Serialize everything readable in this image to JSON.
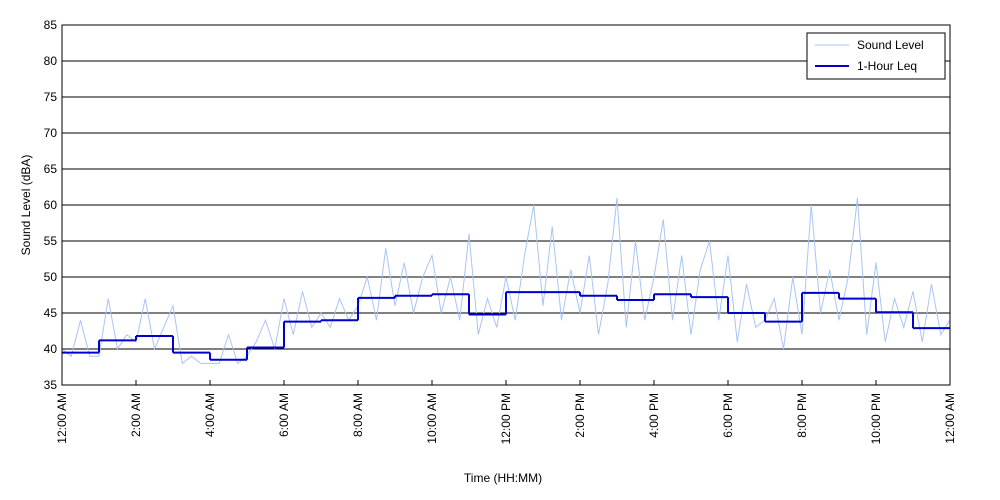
{
  "chart_data": {
    "type": "line",
    "xlabel": "Time (HH:MM)",
    "ylabel": "Sound Level (dBA)",
    "xlim": [
      0,
      24
    ],
    "ylim": [
      35,
      85
    ],
    "xticks": [
      {
        "value": 0,
        "label": "12:00 AM"
      },
      {
        "value": 2,
        "label": "2:00 AM"
      },
      {
        "value": 4,
        "label": "4:00 AM"
      },
      {
        "value": 6,
        "label": "6:00 AM"
      },
      {
        "value": 8,
        "label": "8:00 AM"
      },
      {
        "value": 10,
        "label": "10:00 AM"
      },
      {
        "value": 12,
        "label": "12:00 PM"
      },
      {
        "value": 14,
        "label": "2:00 PM"
      },
      {
        "value": 16,
        "label": "4:00 PM"
      },
      {
        "value": 18,
        "label": "6:00 PM"
      },
      {
        "value": 20,
        "label": "8:00 PM"
      },
      {
        "value": 22,
        "label": "10:00 PM"
      },
      {
        "value": 24,
        "label": "12:00 AM"
      }
    ],
    "yticks": [
      35,
      40,
      45,
      50,
      55,
      60,
      65,
      70,
      75,
      80,
      85
    ],
    "grid": true,
    "legend": "upper right",
    "series": [
      {
        "name": "Sound Level",
        "color": "#a9c4f5",
        "style": "line",
        "x": [
          0,
          0.25,
          0.5,
          0.75,
          1,
          1.25,
          1.5,
          1.75,
          2,
          2.25,
          2.5,
          2.75,
          3,
          3.25,
          3.5,
          3.75,
          4,
          4.25,
          4.5,
          4.75,
          5,
          5.25,
          5.5,
          5.75,
          6,
          6.25,
          6.5,
          6.75,
          7,
          7.25,
          7.5,
          7.75,
          8,
          8.25,
          8.5,
          8.75,
          9,
          9.25,
          9.5,
          9.75,
          10,
          10.25,
          10.5,
          10.75,
          11,
          11.25,
          11.5,
          11.75,
          12,
          12.25,
          12.5,
          12.75,
          13,
          13.25,
          13.5,
          13.75,
          14,
          14.25,
          14.5,
          14.75,
          15,
          15.25,
          15.5,
          15.75,
          16,
          16.25,
          16.5,
          16.75,
          17,
          17.25,
          17.5,
          17.75,
          18,
          18.25,
          18.5,
          18.75,
          19,
          19.25,
          19.5,
          19.75,
          20,
          20.25,
          20.5,
          20.75,
          21,
          21.25,
          21.5,
          21.75,
          22,
          22.25,
          22.5,
          22.75,
          23,
          23.25,
          23.5,
          23.75,
          24
        ],
        "values": [
          40,
          39,
          44,
          39,
          39,
          47,
          40,
          42,
          41,
          47,
          40,
          43,
          46,
          38,
          39,
          38,
          38,
          38,
          42,
          38,
          39,
          41,
          44,
          40,
          47,
          42,
          48,
          43,
          45,
          43,
          47,
          44,
          46,
          50,
          44,
          54,
          46,
          52,
          45,
          50,
          53,
          45,
          50,
          44,
          56,
          42,
          47,
          43,
          50,
          44,
          53,
          60,
          46,
          57,
          44,
          51,
          45,
          53,
          42,
          49,
          61,
          43,
          55,
          44,
          50,
          58,
          44,
          53,
          42,
          51,
          55,
          44,
          53,
          41,
          49,
          43,
          44,
          47,
          40,
          50,
          42,
          60,
          45,
          51,
          44,
          50,
          61,
          42,
          52,
          41,
          47,
          43,
          48,
          41,
          49,
          42,
          44
        ]
      },
      {
        "name": "1-Hour Leq",
        "color": "#0000cc",
        "style": "step",
        "x": [
          0,
          1,
          2,
          3,
          4,
          5,
          6,
          7,
          8,
          9,
          10,
          11,
          12,
          13,
          14,
          15,
          16,
          17,
          18,
          19,
          20,
          21,
          22,
          23
        ],
        "values": [
          39.5,
          41.2,
          41.8,
          39.5,
          38.5,
          40.2,
          43.8,
          44.0,
          47.1,
          47.4,
          47.6,
          44.8,
          47.9,
          47.9,
          47.4,
          46.8,
          47.6,
          47.2,
          45.0,
          43.8,
          47.8,
          47.0,
          45.1,
          42.9
        ]
      }
    ]
  }
}
